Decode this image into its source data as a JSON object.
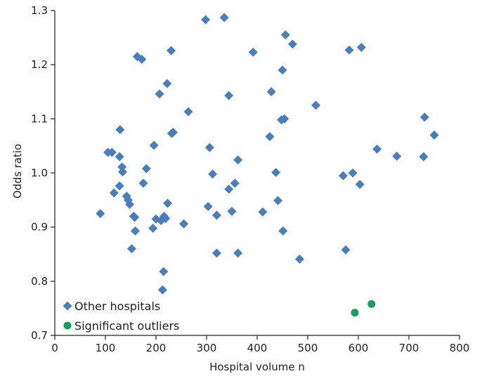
{
  "chart_data": {
    "type": "scatter",
    "xlabel": "Hospital volume n",
    "ylabel": "Odds ratio",
    "xlim": [
      0,
      800
    ],
    "ylim": [
      0.7,
      1.3
    ],
    "xticks": [
      0,
      100,
      200,
      300,
      400,
      500,
      600,
      700,
      800
    ],
    "yticks": [
      0.7,
      0.8,
      0.9,
      1.0,
      1.1,
      1.2,
      1.3
    ],
    "xtick_labels": [
      "0",
      "100",
      "200",
      "300",
      "400",
      "500",
      "600",
      "700",
      "800"
    ],
    "ytick_labels": [
      "0.7",
      "0.8",
      "0.9",
      "1.0",
      "1.1",
      "1.2",
      "1.3"
    ],
    "grid": false,
    "legend_position": "bottom-left",
    "series": [
      {
        "name": "Other hospitals",
        "marker": "diamond",
        "color": "#4a7ebb",
        "points": [
          [
            90,
            0.925
          ],
          [
            105,
            1.038
          ],
          [
            113,
            1.038
          ],
          [
            117,
            0.963
          ],
          [
            128,
            1.03
          ],
          [
            128,
            0.976
          ],
          [
            129,
            1.08
          ],
          [
            133,
            1.011
          ],
          [
            134,
            1.002
          ],
          [
            142,
            0.957
          ],
          [
            145,
            0.95
          ],
          [
            148,
            0.942
          ],
          [
            152,
            0.86
          ],
          [
            156,
            0.92
          ],
          [
            158,
            0.918
          ],
          [
            159,
            0.893
          ],
          [
            163,
            1.215
          ],
          [
            172,
            1.21
          ],
          [
            175,
            0.981
          ],
          [
            181,
            1.008
          ],
          [
            194,
            0.898
          ],
          [
            196,
            1.051
          ],
          [
            200,
            0.915
          ],
          [
            207,
            1.146
          ],
          [
            210,
            0.912
          ],
          [
            213,
            0.784
          ],
          [
            215,
            0.818
          ],
          [
            216,
            0.92
          ],
          [
            219,
            0.916
          ],
          [
            222,
            1.165
          ],
          [
            223,
            0.944
          ],
          [
            230,
            1.226
          ],
          [
            231,
            1.073
          ],
          [
            234,
            1.075
          ],
          [
            255,
            0.906
          ],
          [
            264,
            1.113
          ],
          [
            298,
            1.283
          ],
          [
            303,
            0.938
          ],
          [
            306,
            1.047
          ],
          [
            312,
            0.998
          ],
          [
            320,
            0.922
          ],
          [
            320,
            0.852
          ],
          [
            335,
            1.287
          ],
          [
            344,
            0.97
          ],
          [
            344,
            1.143
          ],
          [
            350,
            0.929
          ],
          [
            356,
            0.981
          ],
          [
            362,
            1.024
          ],
          [
            362,
            0.852
          ],
          [
            392,
            1.223
          ],
          [
            411,
            0.928
          ],
          [
            425,
            1.067
          ],
          [
            428,
            1.15
          ],
          [
            437,
            1.001
          ],
          [
            441,
            0.949
          ],
          [
            448,
            1.098
          ],
          [
            450,
            1.19
          ],
          [
            451,
            0.893
          ],
          [
            454,
            1.1
          ],
          [
            456,
            1.255
          ],
          [
            470,
            1.238
          ],
          [
            484,
            0.841
          ],
          [
            516,
            1.125
          ],
          [
            570,
            0.995
          ],
          [
            575,
            0.858
          ],
          [
            582,
            1.227
          ],
          [
            589,
            1.0
          ],
          [
            603,
            0.979
          ],
          [
            606,
            1.232
          ],
          [
            637,
            1.044
          ],
          [
            676,
            1.031
          ],
          [
            729,
            1.03
          ],
          [
            731,
            1.103
          ],
          [
            750,
            1.07
          ]
        ]
      },
      {
        "name": "Significant outliers",
        "marker": "circle",
        "color": "#1a9e5c",
        "points": [
          [
            593,
            0.742
          ],
          [
            626,
            0.758
          ]
        ]
      }
    ]
  }
}
